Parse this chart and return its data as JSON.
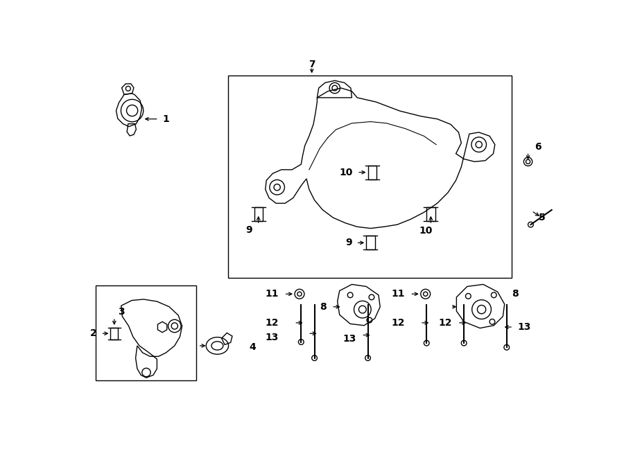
{
  "bg_color": "#ffffff",
  "line_color": "#000000",
  "fig_width": 9.0,
  "fig_height": 6.61,
  "lw": 1.0,
  "arrow_lw": 0.9,
  "label_fontsize": 10,
  "coords": {
    "xlim": [
      0,
      900
    ],
    "ylim": [
      0,
      661
    ]
  }
}
